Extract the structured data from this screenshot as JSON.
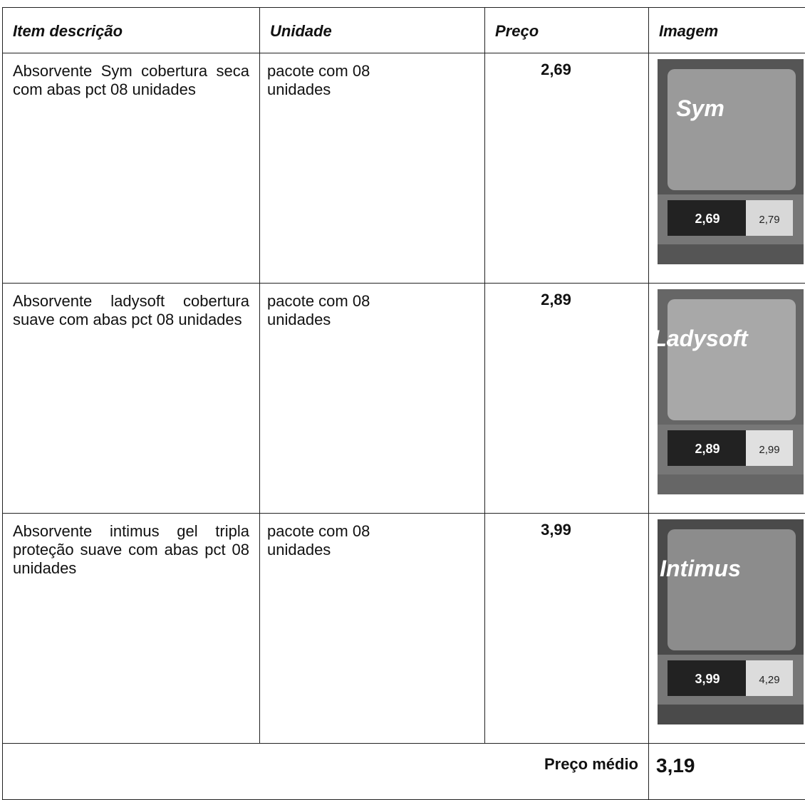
{
  "table": {
    "header": [
      "Item descrição",
      "Unidade",
      "Preço",
      "Imagem"
    ],
    "rows": [
      {
        "description": "Absorvente Sym cobertura seca com abas pct 08 unidades",
        "unit": "pacote com 08 unidades",
        "price": "2,69",
        "image": {
          "brand": "Sym",
          "tags": [
            "2,69",
            "2,79"
          ]
        }
      },
      {
        "description": "Absorvente ladysoft cobertura suave com abas pct 08 unidades",
        "unit": "pacote com 08 unidades",
        "price": "2,89",
        "image": {
          "brand": "Ladysoft",
          "tags": [
            "2,89",
            "2,99"
          ]
        }
      },
      {
        "description": "Absorvente intimus gel tripla proteção suave com abas pct 08 unidades",
        "unit": "pacote com 08 unidades",
        "price": "3,99",
        "image": {
          "brand": "Intimus",
          "tags": [
            "3,99",
            "4,29"
          ]
        }
      }
    ],
    "footer": {
      "label": "Preço médio",
      "value": "3,19"
    }
  }
}
